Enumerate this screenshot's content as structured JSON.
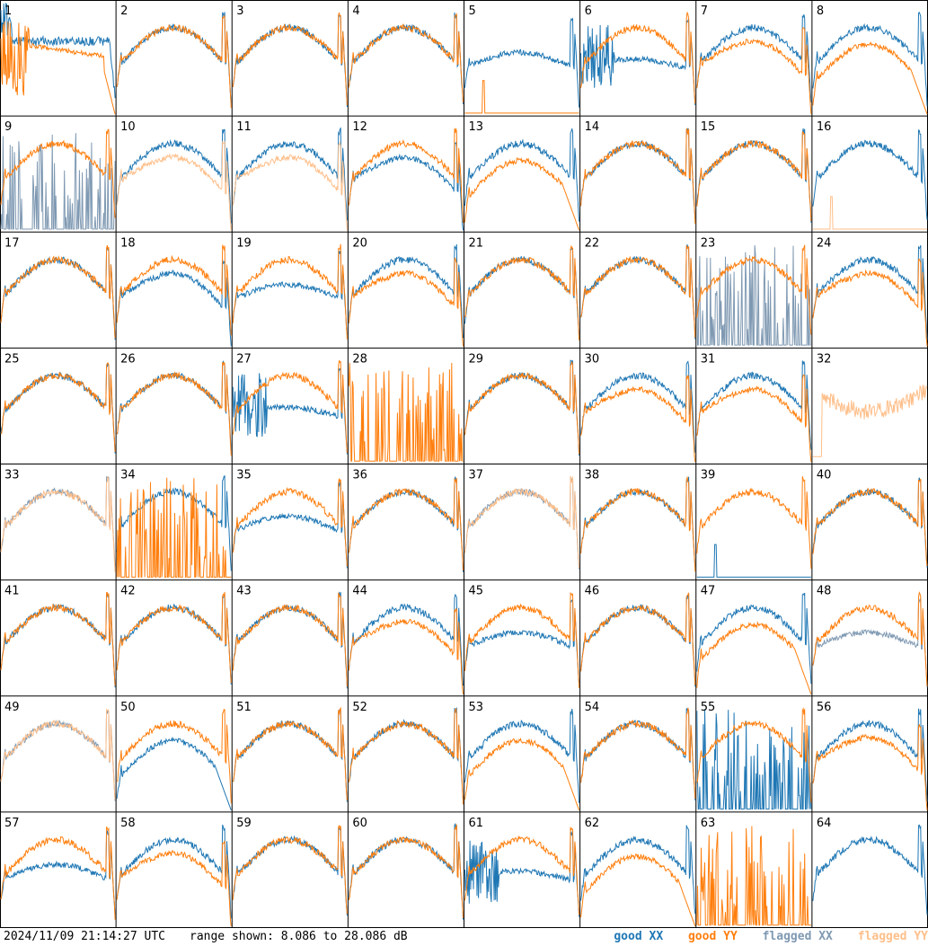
{
  "chart_data": {
    "type": "line",
    "title": "",
    "xlabel": "",
    "ylabel": "",
    "ylim": [
      8.086,
      28.086
    ],
    "panels": [
      {
        "label": "1",
        "xx": "good",
        "yy": "good",
        "xx_shape": "peak",
        "yy_shape": "noisy_drop"
      },
      {
        "label": "2",
        "xx": "good",
        "yy": "good",
        "xx_shape": "bowl",
        "yy_shape": "bowl"
      },
      {
        "label": "3",
        "xx": "good",
        "yy": "good",
        "xx_shape": "bowl",
        "yy_shape": "bowl"
      },
      {
        "label": "4",
        "xx": "good",
        "yy": "good",
        "xx_shape": "bowl",
        "yy_shape": "bowl"
      },
      {
        "label": "5",
        "xx": "good",
        "yy": "good",
        "xx_shape": "dip",
        "yy_shape": "spike"
      },
      {
        "label": "6",
        "xx": "good",
        "yy": "good",
        "xx_shape": "noisy_dip",
        "yy_shape": "bowl"
      },
      {
        "label": "7",
        "xx": "good",
        "yy": "good",
        "xx_shape": "bowl",
        "yy_shape": "low"
      },
      {
        "label": "8",
        "xx": "good",
        "yy": "good",
        "xx_shape": "bowl",
        "yy_shape": "low_drop"
      },
      {
        "label": "9",
        "xx": "flagged",
        "yy": "good",
        "xx_shape": "spiky",
        "yy_shape": "bowl"
      },
      {
        "label": "10",
        "xx": "good",
        "yy": "flagged",
        "xx_shape": "bowl",
        "yy_shape": "low"
      },
      {
        "label": "11",
        "xx": "good",
        "yy": "flagged",
        "xx_shape": "bowl",
        "yy_shape": "low"
      },
      {
        "label": "12",
        "xx": "good",
        "yy": "good",
        "xx_shape": "low",
        "yy_shape": "bowl"
      },
      {
        "label": "13",
        "xx": "good",
        "yy": "good",
        "xx_shape": "bowl",
        "yy_shape": "low_drop"
      },
      {
        "label": "14",
        "xx": "good",
        "yy": "good",
        "xx_shape": "bowl",
        "yy_shape": "bowl"
      },
      {
        "label": "15",
        "xx": "good",
        "yy": "good",
        "xx_shape": "bowl",
        "yy_shape": "bowl"
      },
      {
        "label": "16",
        "xx": "good",
        "yy": "flagged",
        "xx_shape": "bowl",
        "yy_shape": "spike"
      },
      {
        "label": "17",
        "xx": "good",
        "yy": "good",
        "xx_shape": "bowl",
        "yy_shape": "bowl"
      },
      {
        "label": "18",
        "xx": "good",
        "yy": "good",
        "xx_shape": "low",
        "yy_shape": "bowl"
      },
      {
        "label": "19",
        "xx": "good",
        "yy": "good",
        "xx_shape": "dip",
        "yy_shape": "bowl"
      },
      {
        "label": "20",
        "xx": "good",
        "yy": "good",
        "xx_shape": "bowl",
        "yy_shape": "low"
      },
      {
        "label": "21",
        "xx": "good",
        "yy": "good",
        "xx_shape": "bowl",
        "yy_shape": "bowl"
      },
      {
        "label": "22",
        "xx": "good",
        "yy": "good",
        "xx_shape": "bowl",
        "yy_shape": "bowl"
      },
      {
        "label": "23",
        "xx": "flagged",
        "yy": "good",
        "xx_shape": "spiky",
        "yy_shape": "bowl"
      },
      {
        "label": "24",
        "xx": "good",
        "yy": "good",
        "xx_shape": "bowl",
        "yy_shape": "low"
      },
      {
        "label": "25",
        "xx": "good",
        "yy": "good",
        "xx_shape": "bowl",
        "yy_shape": "bowl"
      },
      {
        "label": "26",
        "xx": "good",
        "yy": "good",
        "xx_shape": "bowl",
        "yy_shape": "bowl"
      },
      {
        "label": "27",
        "xx": "good",
        "yy": "good",
        "xx_shape": "noisy_dip",
        "yy_shape": "bowl"
      },
      {
        "label": "28",
        "xx": "good",
        "yy": "good",
        "xx_shape": "none",
        "yy_shape": "spiky"
      },
      {
        "label": "29",
        "xx": "good",
        "yy": "good",
        "xx_shape": "bowl",
        "yy_shape": "bowl"
      },
      {
        "label": "30",
        "xx": "good",
        "yy": "good",
        "xx_shape": "bowl",
        "yy_shape": "low"
      },
      {
        "label": "31",
        "xx": "good",
        "yy": "good",
        "xx_shape": "bowl",
        "yy_shape": "low"
      },
      {
        "label": "32",
        "xx": "flagged",
        "yy": "flagged",
        "xx_shape": "none",
        "yy_shape": "noisy_mid"
      },
      {
        "label": "33",
        "xx": "flagged",
        "yy": "flagged",
        "xx_shape": "bowl",
        "yy_shape": "bowl"
      },
      {
        "label": "34",
        "xx": "good",
        "yy": "good",
        "xx_shape": "bowl",
        "yy_shape": "spiky"
      },
      {
        "label": "35",
        "xx": "good",
        "yy": "good",
        "xx_shape": "dip",
        "yy_shape": "bowl"
      },
      {
        "label": "36",
        "xx": "good",
        "yy": "good",
        "xx_shape": "bowl",
        "yy_shape": "bowl"
      },
      {
        "label": "37",
        "xx": "flagged",
        "yy": "flagged",
        "xx_shape": "bowl",
        "yy_shape": "bowl"
      },
      {
        "label": "38",
        "xx": "good",
        "yy": "good",
        "xx_shape": "bowl",
        "yy_shape": "bowl"
      },
      {
        "label": "39",
        "xx": "good",
        "yy": "good",
        "xx_shape": "spike",
        "yy_shape": "bowl"
      },
      {
        "label": "40",
        "xx": "good",
        "yy": "good",
        "xx_shape": "bowl",
        "yy_shape": "bowl"
      },
      {
        "label": "41",
        "xx": "good",
        "yy": "good",
        "xx_shape": "bowl",
        "yy_shape": "bowl"
      },
      {
        "label": "42",
        "xx": "good",
        "yy": "good",
        "xx_shape": "bowl",
        "yy_shape": "bowl"
      },
      {
        "label": "43",
        "xx": "good",
        "yy": "good",
        "xx_shape": "bowl",
        "yy_shape": "bowl"
      },
      {
        "label": "44",
        "xx": "good",
        "yy": "good",
        "xx_shape": "bowl",
        "yy_shape": "low"
      },
      {
        "label": "45",
        "xx": "good",
        "yy": "good",
        "xx_shape": "dip",
        "yy_shape": "bowl"
      },
      {
        "label": "46",
        "xx": "good",
        "yy": "good",
        "xx_shape": "bowl",
        "yy_shape": "bowl"
      },
      {
        "label": "47",
        "xx": "good",
        "yy": "good",
        "xx_shape": "bowl",
        "yy_shape": "low_drop"
      },
      {
        "label": "48",
        "xx": "flagged",
        "yy": "good",
        "xx_shape": "dip",
        "yy_shape": "bowl"
      },
      {
        "label": "49",
        "xx": "flagged",
        "yy": "flagged",
        "xx_shape": "bowl",
        "yy_shape": "bowl"
      },
      {
        "label": "50",
        "xx": "good",
        "yy": "good",
        "xx_shape": "low_drop",
        "yy_shape": "bowl"
      },
      {
        "label": "51",
        "xx": "good",
        "yy": "good",
        "xx_shape": "bowl",
        "yy_shape": "bowl"
      },
      {
        "label": "52",
        "xx": "good",
        "yy": "good",
        "xx_shape": "bowl",
        "yy_shape": "bowl"
      },
      {
        "label": "53",
        "xx": "good",
        "yy": "good",
        "xx_shape": "bowl",
        "yy_shape": "low_drop"
      },
      {
        "label": "54",
        "xx": "good",
        "yy": "good",
        "xx_shape": "bowl",
        "yy_shape": "bowl"
      },
      {
        "label": "55",
        "xx": "good",
        "yy": "good",
        "xx_shape": "spiky",
        "yy_shape": "bowl"
      },
      {
        "label": "56",
        "xx": "good",
        "yy": "good",
        "xx_shape": "bowl",
        "yy_shape": "low"
      },
      {
        "label": "57",
        "xx": "good",
        "yy": "good",
        "xx_shape": "dip",
        "yy_shape": "bowl"
      },
      {
        "label": "58",
        "xx": "good",
        "yy": "good",
        "xx_shape": "bowl",
        "yy_shape": "low"
      },
      {
        "label": "59",
        "xx": "good",
        "yy": "good",
        "xx_shape": "bowl",
        "yy_shape": "bowl"
      },
      {
        "label": "60",
        "xx": "good",
        "yy": "good",
        "xx_shape": "bowl",
        "yy_shape": "bowl"
      },
      {
        "label": "61",
        "xx": "good",
        "yy": "good",
        "xx_shape": "noisy_dip",
        "yy_shape": "bowl"
      },
      {
        "label": "62",
        "xx": "good",
        "yy": "good",
        "xx_shape": "bowl",
        "yy_shape": "low_drop"
      },
      {
        "label": "63",
        "xx": "good",
        "yy": "good",
        "xx_shape": "none",
        "yy_shape": "spiky"
      },
      {
        "label": "64",
        "xx": "good",
        "yy": "good",
        "xx_shape": "bowl",
        "yy_shape": "none"
      }
    ]
  },
  "footer": {
    "timestamp": "2024/11/09 21:14:27 UTC",
    "range_text": "range shown: 8.086 to 28.086 dB"
  },
  "legend": {
    "good_xx": "good XX",
    "good_yy": "good YY",
    "flagged_xx": "flagged XX",
    "flagged_yy": "flagged YY"
  },
  "colors": {
    "good_xx": "#1f77b4",
    "good_yy": "#ff7f0e",
    "flagged_xx": "#7f99b2",
    "flagged_yy": "#ffbf8a"
  }
}
